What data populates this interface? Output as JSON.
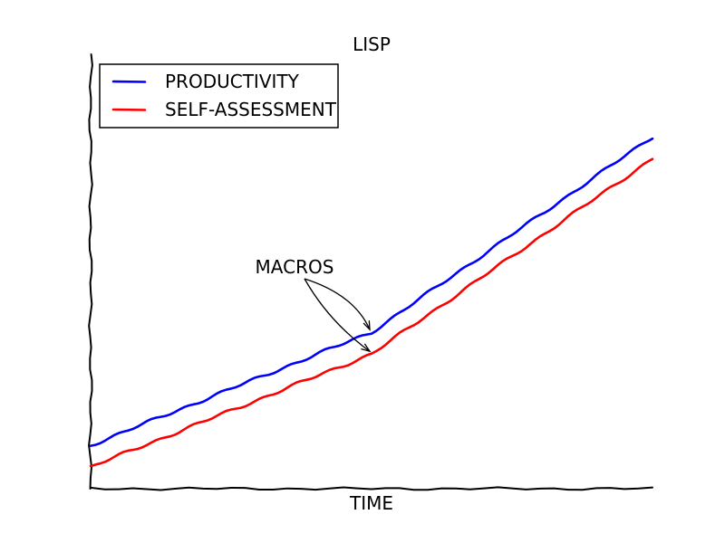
{
  "chart_data": {
    "type": "line",
    "title": "LISP",
    "xlabel": "TIME",
    "ylabel": "",
    "xlim": [
      0,
      100
    ],
    "ylim": [
      0,
      100
    ],
    "grid": false,
    "legend_position": "top-left",
    "colors": {
      "productivity": "#0000ff",
      "self_assessment": "#ff0000"
    },
    "x": [
      0,
      5,
      10,
      15,
      20,
      25,
      30,
      35,
      40,
      45,
      50,
      55,
      60,
      65,
      70,
      75,
      80,
      85,
      90,
      95,
      100
    ],
    "series": [
      {
        "name": "PRODUCTIVITY",
        "color": "#0000ff",
        "values": [
          10,
          12.6,
          15.2,
          17.8,
          20.4,
          23,
          25.6,
          28.2,
          30.8,
          33.4,
          36,
          40.5,
          45,
          49.5,
          54,
          58.5,
          63,
          67.5,
          72,
          76.5,
          81
        ]
      },
      {
        "name": "SELF-ASSESSMENT",
        "color": "#ff0000",
        "values": [
          5,
          7.6,
          10.2,
          12.8,
          15.4,
          18,
          20.6,
          23.2,
          25.8,
          28.4,
          31,
          35.5,
          40,
          44.5,
          49,
          53.5,
          58,
          62.5,
          67,
          71.5,
          76
        ]
      }
    ],
    "annotation": {
      "text": "MACROS",
      "targets": [
        {
          "series": "PRODUCTIVITY",
          "x": 50
        },
        {
          "series": "SELF-ASSESSMENT",
          "x": 50
        }
      ]
    }
  }
}
